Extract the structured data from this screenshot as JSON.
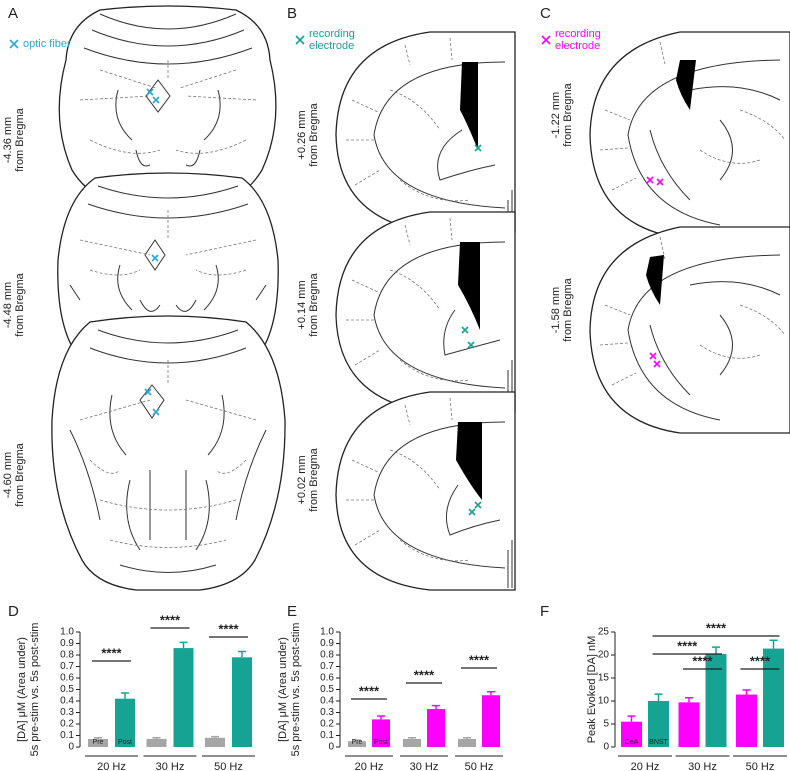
{
  "panel_labels": [
    "A",
    "B",
    "C",
    "D",
    "E",
    "F"
  ],
  "atlas": [
    {
      "legend": [
        "optic fiber"
      ],
      "color": "#29a9d4",
      "levels": [
        [
          "-4.36 mm",
          "from Bregma"
        ],
        [
          "-4.48 mm",
          "from Bregma"
        ],
        [
          "-4.60 mm",
          "from Bregma"
        ]
      ]
    },
    {
      "legend": [
        "recording",
        "electrode"
      ],
      "color": "#16a394",
      "levels": [
        [
          "+0.26 mm",
          "from Bregma"
        ],
        [
          "+0.14 mm",
          "from Bregma"
        ],
        [
          "+0.02 mm",
          "from Bregma"
        ]
      ]
    },
    {
      "legend": [
        "recording",
        "electrode"
      ],
      "color": "#ff00ff",
      "levels": [
        [
          "-1.22 mm",
          "from Bregma"
        ],
        [
          "-1.58 mm",
          "from Bregma"
        ]
      ]
    }
  ],
  "chart_data": [
    {
      "type": "bar",
      "ylabel": [
        "[DA] μM (Area under)",
        "5s pre-stim vs. 5s post-stim"
      ],
      "categories": [
        "20 Hz",
        "30 Hz",
        "50 Hz"
      ],
      "series": [
        {
          "name": "Pre",
          "color": "#a6a6a6",
          "values": [
            0.07,
            0.07,
            0.08
          ],
          "errors": [
            0.01,
            0.01,
            0.01
          ]
        },
        {
          "name": "Post",
          "color": "#16a394",
          "values": [
            0.42,
            0.86,
            0.78
          ],
          "errors": [
            0.05,
            0.05,
            0.05
          ]
        }
      ],
      "ylim": [
        0,
        1
      ],
      "yticks": [
        0,
        0.1,
        0.2,
        0.3,
        0.4,
        0.5,
        0.6,
        0.7,
        0.8,
        0.9,
        {
          "value": 1,
          "label": "1.0"
        }
      ],
      "annotations": [
        "****",
        "****",
        "****"
      ]
    },
    {
      "type": "bar",
      "ylabel": [
        "[DA] μM (Area under)",
        "5s pre-stim vs. 5s post-stim"
      ],
      "categories": [
        "20 Hz",
        "30 Hz",
        "50 Hz"
      ],
      "series": [
        {
          "name": "Pre",
          "color": "#a6a6a6",
          "values": [
            0.05,
            0.07,
            0.07
          ],
          "errors": [
            0.01,
            0.01,
            0.01
          ]
        },
        {
          "name": "Post",
          "color": "#ff00ff",
          "values": [
            0.24,
            0.33,
            0.45
          ],
          "errors": [
            0.03,
            0.03,
            0.03
          ]
        }
      ],
      "ylim": [
        0,
        1
      ],
      "yticks": [
        0,
        0.1,
        0.2,
        0.3,
        0.4,
        0.5,
        0.6,
        0.7,
        0.8,
        0.9,
        {
          "value": 1,
          "label": "1.0"
        }
      ],
      "annotations": [
        "****",
        "****",
        "****"
      ]
    },
    {
      "type": "bar",
      "ylabel": [
        "Peak Evoked [DA] nM"
      ],
      "categories": [
        "20 Hz",
        "30 Hz",
        "50 Hz"
      ],
      "series": [
        {
          "name": "CeA",
          "color": "#ff00ff",
          "values": [
            5.5,
            9.7,
            11.4
          ],
          "errors": [
            1.2,
            1.0,
            1.0
          ]
        },
        {
          "name": "BNST",
          "color": "#16a394",
          "values": [
            10.0,
            20.2,
            21.4
          ],
          "errors": [
            1.5,
            1.5,
            1.8
          ]
        }
      ],
      "ylim": [
        0,
        25
      ],
      "yticks": [
        0,
        5,
        10,
        15,
        20,
        25
      ],
      "annotations": [
        "****",
        "****",
        "****",
        "****"
      ]
    }
  ]
}
